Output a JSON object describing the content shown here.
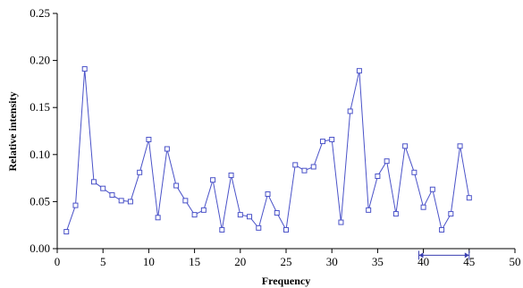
{
  "chart_data": {
    "type": "line",
    "title": "",
    "xlabel": "Frequency",
    "ylabel": "Relative intensity",
    "xlim": [
      0,
      50
    ],
    "ylim": [
      0,
      0.25
    ],
    "x_ticks": [
      "0",
      "5",
      "10",
      "15",
      "20",
      "25",
      "30",
      "35",
      "40",
      "45",
      "50"
    ],
    "y_ticks": [
      "0.00",
      "0.05",
      "0.10",
      "0.15",
      "0.20",
      "0.25"
    ],
    "grid": false,
    "legend": "none",
    "series": [
      {
        "color": "#4a52c8",
        "marker": "open-square",
        "x": [
          1,
          2,
          3,
          4,
          5,
          6,
          7,
          8,
          9,
          10,
          11,
          12,
          13,
          14,
          15,
          16,
          17,
          18,
          19,
          20,
          21,
          22,
          23,
          24,
          25,
          26,
          27,
          28,
          29,
          30,
          31,
          32,
          33,
          34,
          35,
          36,
          37,
          38,
          39,
          40,
          41,
          42,
          43,
          44,
          45
        ],
        "y": [
          0.018,
          0.046,
          0.191,
          0.071,
          0.064,
          0.057,
          0.051,
          0.05,
          0.081,
          0.116,
          0.033,
          0.106,
          0.067,
          0.051,
          0.036,
          0.041,
          0.073,
          0.02,
          0.078,
          0.036,
          0.034,
          0.022,
          0.058,
          0.038,
          0.02,
          0.089,
          0.083,
          0.087,
          0.114,
          0.116,
          0.028,
          0.146,
          0.189,
          0.041,
          0.077,
          0.093,
          0.037,
          0.109,
          0.081,
          0.044,
          0.063,
          0.02,
          0.037,
          0.109,
          0.054
        ]
      }
    ],
    "annotations": [
      {
        "type": "double-arrow",
        "x_start": 39.5,
        "x_end": 45,
        "y": -0.007
      }
    ]
  }
}
